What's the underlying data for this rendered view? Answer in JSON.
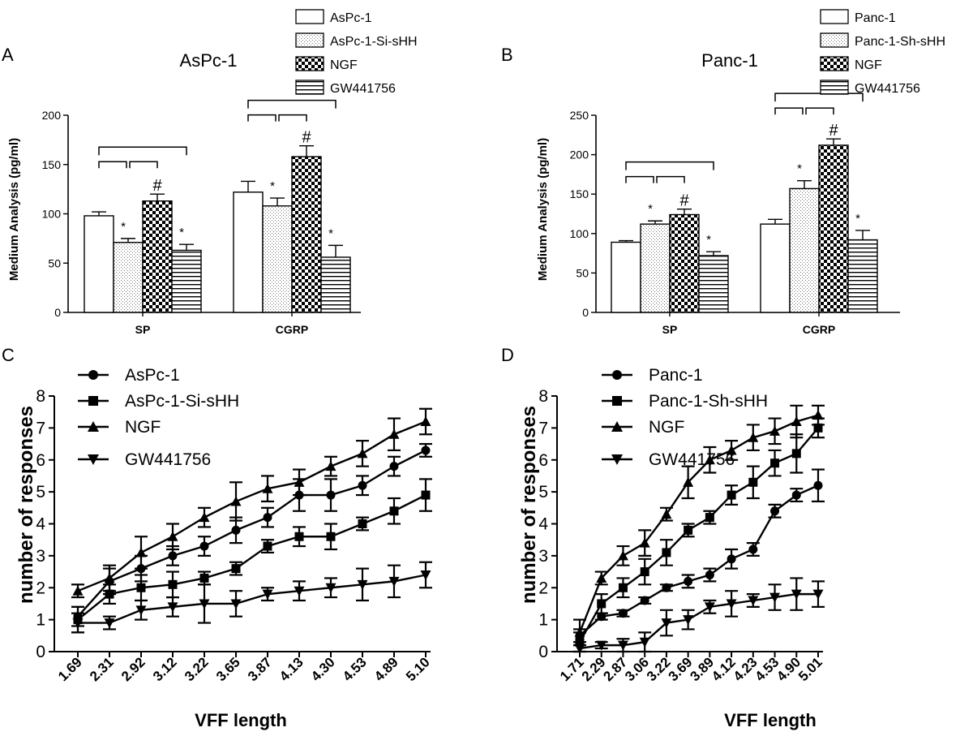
{
  "panels": {
    "A": {
      "label": "A"
    },
    "B": {
      "label": "B"
    },
    "C": {
      "label": "C"
    },
    "D": {
      "label": "D"
    }
  },
  "chart_data": [
    {
      "id": "A",
      "type": "bar",
      "title": "AsPc-1",
      "ylabel": "Medium Analysis (pg/ml)",
      "xlabel": "",
      "ylim": [
        0,
        200
      ],
      "yticks": [
        0,
        50,
        100,
        150,
        200
      ],
      "categories": [
        "SP",
        "CGRP"
      ],
      "series": [
        {
          "name": "AsPc-1",
          "pattern": "plain",
          "values": [
            98,
            122
          ],
          "errors": [
            4,
            11
          ]
        },
        {
          "name": "AsPc-1-Si-sHH",
          "pattern": "dots",
          "values": [
            71,
            108
          ],
          "errors": [
            4,
            8
          ]
        },
        {
          "name": "NGF",
          "pattern": "checker",
          "values": [
            113,
            158
          ],
          "errors": [
            7,
            11
          ]
        },
        {
          "name": "GW441756",
          "pattern": "hlines",
          "values": [
            63,
            56
          ],
          "errors": [
            6,
            12
          ]
        }
      ],
      "annotations": {
        "star": "*",
        "hash": "#"
      }
    },
    {
      "id": "B",
      "type": "bar",
      "title": "Panc-1",
      "ylabel": "Medium Analysis (pg/ml)",
      "xlabel": "",
      "ylim": [
        0,
        250
      ],
      "yticks": [
        0,
        50,
        100,
        150,
        200,
        250
      ],
      "categories": [
        "SP",
        "CGRP"
      ],
      "series": [
        {
          "name": "Panc-1",
          "pattern": "plain",
          "values": [
            89,
            112
          ],
          "errors": [
            2,
            6
          ]
        },
        {
          "name": "Panc-1-Sh-sHH",
          "pattern": "dots",
          "values": [
            112,
            157
          ],
          "errors": [
            4,
            10
          ]
        },
        {
          "name": "NGF",
          "pattern": "checker",
          "values": [
            124,
            212
          ],
          "errors": [
            7,
            8
          ]
        },
        {
          "name": "GW441756",
          "pattern": "hlines",
          "values": [
            72,
            92
          ],
          "errors": [
            5,
            12
          ]
        }
      ],
      "annotations": {
        "star": "*",
        "hash": "#"
      }
    },
    {
      "id": "C",
      "type": "line",
      "title": "",
      "ylabel": "number of responses",
      "xlabel": "VFF length",
      "ylim": [
        0,
        8
      ],
      "yticks": [
        0,
        1,
        2,
        3,
        4,
        5,
        6,
        7,
        8
      ],
      "categories": [
        "1.69",
        "2.31",
        "2.92",
        "3.12",
        "3.22",
        "3.65",
        "3.87",
        "4.13",
        "4.30",
        "4.53",
        "4.89",
        "5.10"
      ],
      "series": [
        {
          "name": "AsPc-1",
          "marker": "circle",
          "values": [
            1.1,
            2.2,
            2.6,
            3.0,
            3.3,
            3.8,
            4.2,
            4.9,
            4.9,
            5.2,
            5.8,
            6.3
          ],
          "errors": [
            0.3,
            0.4,
            0.4,
            0.3,
            0.3,
            0.4,
            0.3,
            0.5,
            0.5,
            0.3,
            0.3,
            0.2
          ]
        },
        {
          "name": "AsPc-1-Si-sHH",
          "marker": "square",
          "values": [
            1.0,
            1.8,
            2.0,
            2.1,
            2.3,
            2.6,
            3.3,
            3.6,
            3.6,
            4.0,
            4.4,
            4.9
          ],
          "errors": [
            0.4,
            0.3,
            0.4,
            0.4,
            0.2,
            0.2,
            0.2,
            0.3,
            0.4,
            0.2,
            0.4,
            0.5
          ]
        },
        {
          "name": "NGF",
          "marker": "triangle-up",
          "values": [
            1.9,
            2.3,
            3.1,
            3.6,
            4.2,
            4.7,
            5.1,
            5.3,
            5.8,
            6.2,
            6.8,
            7.2
          ],
          "errors": [
            0.2,
            0.4,
            0.5,
            0.4,
            0.3,
            0.6,
            0.4,
            0.4,
            0.3,
            0.4,
            0.5,
            0.4
          ]
        },
        {
          "name": "GW441756",
          "marker": "triangle-down",
          "values": [
            0.9,
            0.9,
            1.3,
            1.4,
            1.5,
            1.5,
            1.8,
            1.9,
            2.0,
            2.1,
            2.2,
            2.4
          ],
          "errors": [
            0.3,
            0.2,
            0.3,
            0.3,
            0.6,
            0.4,
            0.2,
            0.3,
            0.3,
            0.5,
            0.5,
            0.4
          ]
        }
      ]
    },
    {
      "id": "D",
      "type": "line",
      "title": "",
      "ylabel": "number of responses",
      "xlabel": "VFF length",
      "ylim": [
        0,
        8
      ],
      "yticks": [
        0,
        1,
        2,
        3,
        4,
        5,
        6,
        7,
        8
      ],
      "categories": [
        "1.71",
        "2.29",
        "2.87",
        "3.06",
        "3.22",
        "3.69",
        "3.89",
        "4.12",
        "4.23",
        "4.53",
        "4.90",
        "5.01"
      ],
      "series": [
        {
          "name": "Panc-1",
          "marker": "circle",
          "values": [
            0.5,
            1.1,
            1.2,
            1.6,
            2.0,
            2.2,
            2.4,
            2.9,
            3.2,
            4.4,
            4.9,
            5.2
          ],
          "errors": [
            0.2,
            0.1,
            0.1,
            0.1,
            0.1,
            0.2,
            0.2,
            0.3,
            0.2,
            0.2,
            0.2,
            0.5
          ]
        },
        {
          "name": "Panc-1-Sh-sHH",
          "marker": "square",
          "values": [
            0.3,
            1.5,
            2.0,
            2.5,
            3.1,
            3.8,
            4.2,
            4.9,
            5.3,
            5.9,
            6.2,
            7.0
          ],
          "errors": [
            0.3,
            0.3,
            0.3,
            0.4,
            0.4,
            0.2,
            0.2,
            0.3,
            0.5,
            0.4,
            0.6,
            0.3
          ]
        },
        {
          "name": "NGF",
          "marker": "triangle-up",
          "values": [
            0.6,
            2.3,
            3.0,
            3.4,
            4.3,
            5.3,
            6.0,
            6.3,
            6.7,
            6.9,
            7.2,
            7.4
          ],
          "errors": [
            0.4,
            0.2,
            0.3,
            0.4,
            0.2,
            0.5,
            0.4,
            0.3,
            0.4,
            0.4,
            0.5,
            0.3
          ]
        },
        {
          "name": "GW441756",
          "marker": "triangle-down",
          "values": [
            0.1,
            0.2,
            0.2,
            0.3,
            0.9,
            1.0,
            1.4,
            1.5,
            1.6,
            1.7,
            1.8,
            1.8
          ],
          "errors": [
            0.1,
            0.1,
            0.2,
            0.3,
            0.4,
            0.3,
            0.2,
            0.4,
            0.2,
            0.4,
            0.5,
            0.4
          ]
        }
      ]
    }
  ]
}
